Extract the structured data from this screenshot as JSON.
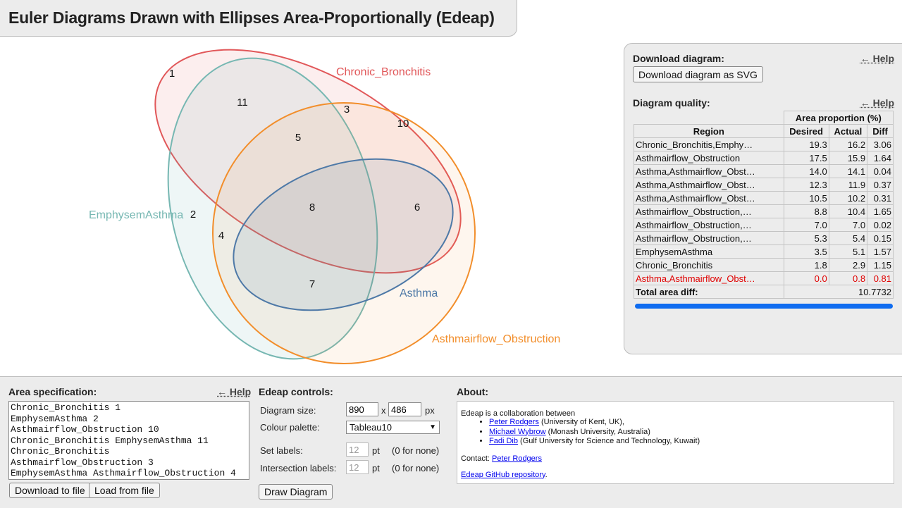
{
  "header": {
    "title": "Euler Diagrams Drawn with Ellipses Area-Proportionally (Edeap)"
  },
  "diagram": {
    "sets": [
      {
        "name": "Chronic_Bronchitis",
        "color": "#e15759"
      },
      {
        "name": "EmphysemAsthma",
        "color": "#76b7b2"
      },
      {
        "name": "Asthmairflow_Obstruction",
        "color": "#f28e2b"
      },
      {
        "name": "Asthma",
        "color": "#4e79a7"
      }
    ],
    "region_values": [
      "1",
      "11",
      "3",
      "10",
      "5",
      "2",
      "4",
      "8",
      "6",
      "7"
    ]
  },
  "download": {
    "heading": "Download diagram:",
    "help": "← Help",
    "button": "Download diagram as SVG"
  },
  "quality": {
    "heading": "Diagram quality:",
    "help": "← Help",
    "group_header": "Area proportion (%)",
    "columns": [
      "Region",
      "Desired",
      "Actual",
      "Diff"
    ],
    "rows": [
      {
        "region": "Chronic_Bronchitis,Emphy…",
        "desired": "19.3",
        "actual": "16.2",
        "diff": "3.06"
      },
      {
        "region": "Asthmairflow_Obstruction",
        "desired": "17.5",
        "actual": "15.9",
        "diff": "1.64"
      },
      {
        "region": "Asthma,Asthmairflow_Obst…",
        "desired": "14.0",
        "actual": "14.1",
        "diff": "0.04"
      },
      {
        "region": "Asthma,Asthmairflow_Obst…",
        "desired": "12.3",
        "actual": "11.9",
        "diff": "0.37"
      },
      {
        "region": "Asthma,Asthmairflow_Obst…",
        "desired": "10.5",
        "actual": "10.2",
        "diff": "0.31"
      },
      {
        "region": "Asthmairflow_Obstruction,…",
        "desired": "8.8",
        "actual": "10.4",
        "diff": "1.65"
      },
      {
        "region": "Asthmairflow_Obstruction,…",
        "desired": "7.0",
        "actual": "7.0",
        "diff": "0.02"
      },
      {
        "region": "Asthmairflow_Obstruction,…",
        "desired": "5.3",
        "actual": "5.4",
        "diff": "0.15"
      },
      {
        "region": "EmphysemAsthma",
        "desired": "3.5",
        "actual": "5.1",
        "diff": "1.57"
      },
      {
        "region": "Chronic_Bronchitis",
        "desired": "1.8",
        "actual": "2.9",
        "diff": "1.15"
      },
      {
        "region": "Asthma,Asthmairflow_Obst…",
        "desired": "0.0",
        "actual": "0.8",
        "diff": "0.81"
      }
    ],
    "highlight_color": "#e00000",
    "total_label": "Total area diff:",
    "total_value": "10.7732",
    "progress_fraction": 1.0
  },
  "area_spec": {
    "heading": "Area specification:",
    "help": "← Help",
    "text": "Chronic_Bronchitis 1\nEmphysemAsthma 2\nAsthmairflow_Obstruction 10\nChronic_Bronchitis EmphysemAsthma 11\nChronic_Bronchitis\nAsthmairflow_Obstruction 3\nEmphysemAsthma Asthmairflow_Obstruction 4",
    "download_button": "Download to file",
    "load_button": "Load from file"
  },
  "controls": {
    "heading": "Edeap controls:",
    "size_label": "Diagram size:",
    "width": "890",
    "times": "x",
    "height": "486",
    "px": "px",
    "palette_label": "Colour palette:",
    "palette_value": "Tableau10",
    "set_labels_label": "Set labels:",
    "set_labels_value": "12",
    "intersection_labels_label": "Intersection labels:",
    "intersection_labels_value": "12",
    "pt": "pt",
    "none_hint": "(0 for none)",
    "draw_button": "Draw Diagram"
  },
  "about": {
    "heading": "About:",
    "intro": "Edeap is a collaboration between",
    "people": [
      {
        "name": "Peter Rodgers",
        "affiliation": "(University of Kent, UK),"
      },
      {
        "name": "Michael Wybrow",
        "affiliation": "(Monash University, Australia)"
      },
      {
        "name": "Fadi Dib",
        "affiliation": "(Gulf University for Science and Technology, Kuwait)"
      }
    ],
    "contact_label": "Contact:",
    "contact_name": "Peter Rodgers",
    "repo_link": "Edeap GitHub repository",
    "repo_suffix": "."
  }
}
